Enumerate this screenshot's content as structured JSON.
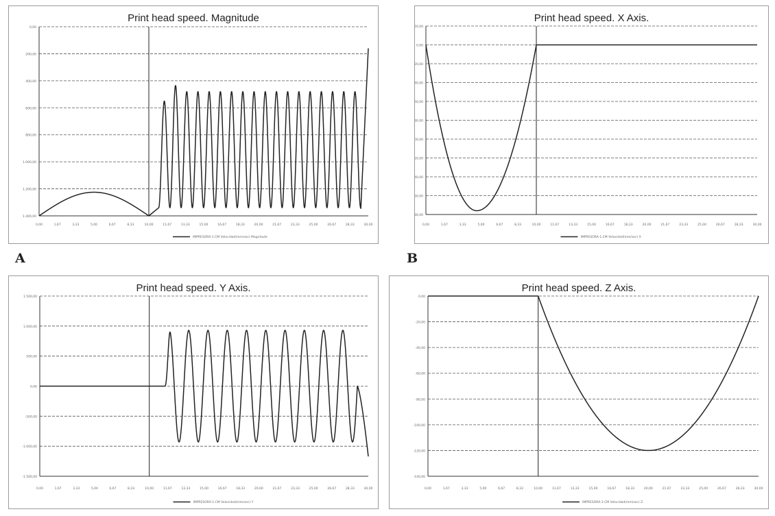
{
  "labels": {
    "a": "A",
    "b": "B"
  },
  "colors": {
    "line": "#222222",
    "grid": "#555555",
    "axis": "#333333",
    "tick_text": "#666666"
  },
  "chart_data": [
    {
      "id": "A",
      "type": "line",
      "title": "Print head speed. Magnitude",
      "legend": "IMPRESORA-1.CM Velocidad(mm/sec) Magnitude",
      "legend_position": "bottom",
      "grid": true,
      "ylim": [
        0,
        1400
      ],
      "yticks": [
        "0,00",
        "200,00",
        "400,00",
        "600,00",
        "800,00",
        "1.000,00",
        "1.200,00",
        "1.400,00"
      ],
      "xticks": [
        "0,00",
        "1,67",
        "3,33",
        "5,00",
        "6,67",
        "8,33",
        "10,00",
        "11,67",
        "13,33",
        "15,00",
        "16,67",
        "18,33",
        "20,00",
        "21,67",
        "23,33",
        "25,00",
        "26,67",
        "28,33",
        "30,00"
      ],
      "xlim": [
        0,
        30
      ],
      "vline": 10,
      "segments": [
        {
          "shape": "arch",
          "x_start": 0,
          "x_end": 10,
          "peak": 175
        },
        {
          "shape": "oscillation",
          "x_start": 10.9,
          "x_end": 29.3,
          "cycles": 18,
          "min": 60,
          "peak": 920,
          "first_peaks": [
            850,
            965
          ]
        },
        {
          "shape": "ramp",
          "x_start": 29.3,
          "x_end": 30,
          "y_start": 20,
          "y_end": 1240
        }
      ]
    },
    {
      "id": "B",
      "type": "line",
      "title": "Print head speed. X Axis.",
      "legend": "IMPRESORA-1.CM Velocidad(mm/sec) X",
      "legend_position": "bottom",
      "grid": true,
      "ylim": [
        -180,
        20
      ],
      "yticks": [
        "20,00",
        "0,00",
        "-20,00",
        "-40,00",
        "-60,00",
        "-80,00",
        "-100,00",
        "-120,00",
        "-140,00",
        "-160,00",
        "-180,00"
      ],
      "xticks": [
        "0,00",
        "1,67",
        "3,33",
        "5,00",
        "6,67",
        "8,33",
        "10,00",
        "11,67",
        "13,33",
        "15,00",
        "16,67",
        "18,33",
        "20,00",
        "21,67",
        "23,33",
        "25,00",
        "26,67",
        "28,33",
        "30,00"
      ],
      "xlim": [
        0,
        30
      ],
      "vline": 10,
      "segments": [
        {
          "shape": "bowl",
          "x_start": 0,
          "x_end": 10,
          "min": -176,
          "x_min": 4.6
        },
        {
          "shape": "flat",
          "x_start": 10,
          "x_end": 30,
          "value": 0
        }
      ]
    },
    {
      "id": "C",
      "type": "line",
      "title": "Print head speed. Y Axis.",
      "legend": "IMPRESORA-1.CM Velocidad(mm/sec) Y",
      "legend_position": "bottom",
      "grid": true,
      "ylim": [
        -1500,
        1500
      ],
      "yticks": [
        "1.500,00",
        "1.000,00",
        "500,00",
        "0,00",
        "-500,00",
        "-1.000,00",
        "-1.500,00"
      ],
      "xticks": [
        "0,00",
        "1,67",
        "3,33",
        "5,00",
        "6,67",
        "8,33",
        "10,00",
        "11,67",
        "13,33",
        "15,00",
        "16,67",
        "18,33",
        "20,00",
        "21,67",
        "23,33",
        "25,00",
        "26,67",
        "28,33",
        "30,00"
      ],
      "xlim": [
        0,
        30
      ],
      "vline": 10,
      "segments": [
        {
          "shape": "flat",
          "x_start": 0,
          "x_end": 11.4,
          "value": 0
        },
        {
          "shape": "sine",
          "x_start": 11.4,
          "x_end": 29.0,
          "cycles": 10,
          "amplitude": 930
        },
        {
          "shape": "drop",
          "x_start": 29.0,
          "x_end": 30,
          "y_start": 0,
          "y_end": -1170
        }
      ]
    },
    {
      "id": "D",
      "type": "line",
      "title": "Print head speed. Z Axis.",
      "legend": "IMPRESORA-1.CM Velocidad(mm/sec) Z",
      "legend_position": "bottom",
      "grid": true,
      "ylim": [
        -140,
        0
      ],
      "yticks": [
        "0,00",
        "-20,00",
        "-40,00",
        "-60,00",
        "-80,00",
        "-100,00",
        "-120,00",
        "-140,00"
      ],
      "xticks": [
        "0,00",
        "1,67",
        "3,33",
        "5,00",
        "6,67",
        "8,33",
        "10,00",
        "11,67",
        "13,33",
        "15,00",
        "16,67",
        "18,33",
        "20,00",
        "21,67",
        "23,33",
        "25,00",
        "26,67",
        "28,33",
        "30,00"
      ],
      "xlim": [
        0,
        30
      ],
      "vline": 10,
      "segments": [
        {
          "shape": "flat",
          "x_start": 0,
          "x_end": 10,
          "value": 0
        },
        {
          "shape": "bowl",
          "x_start": 10,
          "x_end": 30,
          "min": -120,
          "x_min": 20
        }
      ]
    }
  ]
}
